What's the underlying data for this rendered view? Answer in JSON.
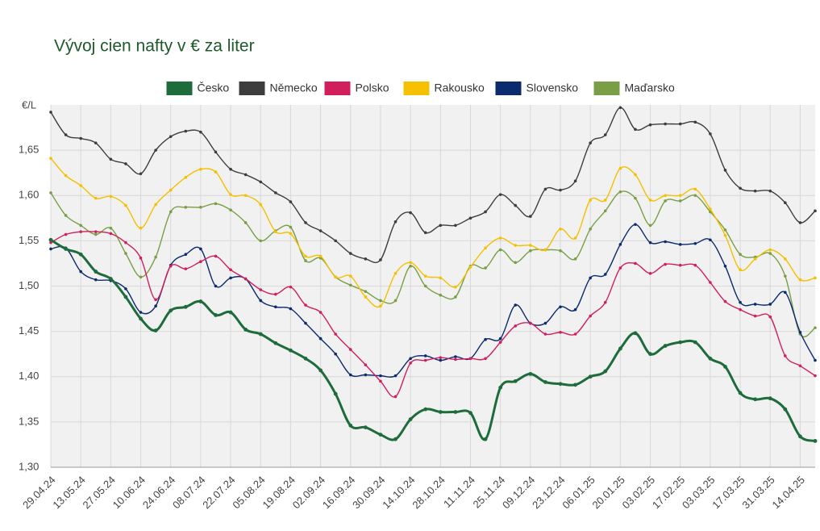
{
  "chart_data": {
    "type": "line",
    "title": "Vývoj cien nafty v € za liter",
    "y_label": "€/L",
    "categories": [
      "29.04.24",
      null,
      "13.05.24",
      null,
      "27.05.24",
      null,
      "10.06.24",
      null,
      "24.06.24",
      null,
      "08.07.24",
      null,
      "22.07.24",
      null,
      "05.08.24",
      null,
      "19.08.24",
      null,
      "02.09.24",
      null,
      "16.09.24",
      null,
      "30.09.24",
      null,
      "14.10.24",
      null,
      "28.10.24",
      null,
      "11.11.24",
      null,
      "25.11.24",
      null,
      "09.12.24",
      null,
      "23.12.24",
      null,
      "06.01.25",
      null,
      "20.01.25",
      null,
      "03.02.25",
      null,
      "17.02.25",
      null,
      "03.03.25",
      null,
      "17.03.25",
      null,
      "31.03.25",
      null,
      "14.04.25",
      null
    ],
    "series": [
      {
        "name": "Česko",
        "color": "#1e6b3c",
        "values": [
          1.551,
          1.541,
          1.535,
          1.516,
          1.508,
          1.488,
          1.464,
          1.451,
          1.473,
          1.477,
          1.483,
          1.468,
          1.471,
          1.452,
          1.447,
          1.437,
          1.429,
          1.42,
          1.407,
          1.381,
          1.346,
          1.344,
          1.336,
          1.331,
          1.353,
          1.364,
          1.361,
          1.361,
          1.36,
          1.331,
          1.388,
          1.395,
          1.403,
          1.394,
          1.392,
          1.391,
          1.4,
          1.406,
          1.431,
          1.448,
          1.425,
          1.434,
          1.438,
          1.438,
          1.42,
          1.411,
          1.382,
          1.375,
          1.376,
          1.364,
          1.334,
          1.329
        ]
      },
      {
        "name": "Německo",
        "color": "#3d3d3d",
        "values": [
          1.692,
          1.667,
          1.663,
          1.658,
          1.64,
          1.635,
          1.624,
          1.65,
          1.665,
          1.671,
          1.67,
          1.648,
          1.629,
          1.623,
          1.615,
          1.603,
          1.593,
          1.57,
          1.561,
          1.55,
          1.536,
          1.53,
          1.529,
          1.571,
          1.581,
          1.559,
          1.567,
          1.567,
          1.575,
          1.582,
          1.601,
          1.589,
          1.577,
          1.607,
          1.606,
          1.616,
          1.658,
          1.667,
          1.697,
          1.673,
          1.678,
          1.679,
          1.679,
          1.681,
          1.668,
          1.628,
          1.608,
          1.605,
          1.605,
          1.592,
          1.57,
          1.583
        ]
      },
      {
        "name": "Polsko",
        "color": "#d11f5e",
        "values": [
          1.548,
          1.557,
          1.56,
          1.56,
          1.558,
          1.548,
          1.531,
          1.485,
          1.522,
          1.519,
          1.527,
          1.533,
          1.518,
          1.508,
          1.496,
          1.491,
          1.499,
          1.479,
          1.471,
          1.447,
          1.43,
          1.413,
          1.395,
          1.378,
          1.415,
          1.418,
          1.421,
          1.419,
          1.42,
          1.42,
          1.438,
          1.456,
          1.459,
          1.447,
          1.449,
          1.447,
          1.467,
          1.482,
          1.52,
          1.525,
          1.514,
          1.524,
          1.523,
          1.523,
          1.504,
          1.483,
          1.474,
          1.467,
          1.466,
          1.423,
          1.412,
          1.401
        ]
      },
      {
        "name": "Rakousko",
        "color": "#f5c000",
        "values": [
          1.641,
          1.622,
          1.611,
          1.597,
          1.599,
          1.589,
          1.564,
          1.59,
          1.606,
          1.62,
          1.629,
          1.626,
          1.601,
          1.6,
          1.59,
          1.56,
          1.558,
          1.533,
          1.533,
          1.51,
          1.511,
          1.488,
          1.478,
          1.514,
          1.526,
          1.511,
          1.509,
          1.499,
          1.521,
          1.542,
          1.553,
          1.545,
          1.545,
          1.54,
          1.563,
          1.553,
          1.595,
          1.595,
          1.63,
          1.623,
          1.595,
          1.6,
          1.6,
          1.607,
          1.585,
          1.556,
          1.518,
          1.53,
          1.54,
          1.53,
          1.507,
          1.509
        ]
      },
      {
        "name": "Slovensko",
        "color": "#0c2a6e",
        "values": [
          1.541,
          1.542,
          1.516,
          1.507,
          1.506,
          1.497,
          1.471,
          1.478,
          1.523,
          1.535,
          1.541,
          1.5,
          1.509,
          1.508,
          1.484,
          1.477,
          1.475,
          1.459,
          1.442,
          1.425,
          1.402,
          1.402,
          1.401,
          1.401,
          1.42,
          1.423,
          1.418,
          1.422,
          1.42,
          1.441,
          1.442,
          1.479,
          1.459,
          1.459,
          1.477,
          1.474,
          1.509,
          1.513,
          1.546,
          1.568,
          1.548,
          1.549,
          1.546,
          1.547,
          1.551,
          1.522,
          1.482,
          1.48,
          1.48,
          1.493,
          1.449,
          1.418
        ]
      },
      {
        "name": "Maďarsko",
        "color": "#7a9e45",
        "values": [
          1.603,
          1.578,
          1.567,
          1.557,
          1.564,
          1.536,
          1.51,
          1.532,
          1.582,
          1.587,
          1.587,
          1.591,
          1.584,
          1.57,
          1.55,
          1.561,
          1.565,
          1.528,
          1.531,
          1.51,
          1.501,
          1.494,
          1.484,
          1.484,
          1.522,
          1.5,
          1.49,
          1.488,
          1.522,
          1.52,
          1.54,
          1.526,
          1.539,
          1.54,
          1.539,
          1.53,
          1.563,
          1.583,
          1.604,
          1.597,
          1.567,
          1.594,
          1.594,
          1.6,
          1.582,
          1.562,
          1.535,
          1.532,
          1.536,
          1.511,
          1.447,
          1.454
        ]
      }
    ],
    "ylim": [
      1.3,
      1.7
    ],
    "yticks": [
      {
        "value": 1.3,
        "label": "1,30"
      },
      {
        "value": 1.35,
        "label": "1,35"
      },
      {
        "value": 1.4,
        "label": "1,40"
      },
      {
        "value": 1.45,
        "label": "1,45"
      },
      {
        "value": 1.5,
        "label": "1,50"
      },
      {
        "value": 1.55,
        "label": "1,55"
      },
      {
        "value": 1.6,
        "label": "1,60"
      },
      {
        "value": 1.65,
        "label": "1,65"
      }
    ],
    "grid": true,
    "legend": "top"
  }
}
